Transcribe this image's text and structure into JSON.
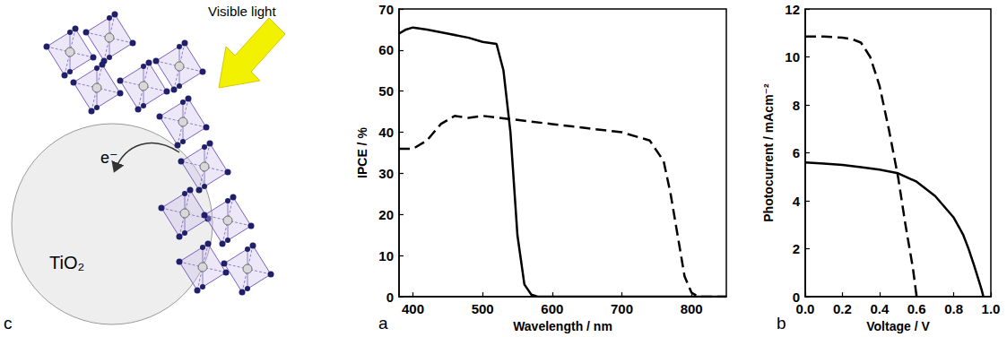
{
  "diagram": {
    "label": "c",
    "light": "Visible light",
    "electron": "e⁻",
    "substrate": "TiO₂"
  },
  "chart_data": [
    {
      "type": "line",
      "label": "a",
      "x_label": "Wavelength / nm",
      "y_label": "IPCE / %",
      "xlim": [
        380,
        850
      ],
      "xticks": [
        400,
        500,
        600,
        700,
        800
      ],
      "ylim": [
        0,
        70
      ],
      "yticks": [
        0,
        10,
        20,
        30,
        40,
        50,
        60,
        70
      ],
      "grid": false,
      "tick_labels": true,
      "series": [
        {
          "color": "#000000",
          "line_style": "solid",
          "x": [
            380,
            390,
            400,
            420,
            450,
            480,
            500,
            520,
            530,
            540,
            550,
            560,
            570,
            580,
            850
          ],
          "values": [
            64,
            65,
            65.5,
            65,
            64,
            63,
            62,
            61.5,
            55,
            40,
            15,
            3,
            0.5,
            0,
            0
          ]
        },
        {
          "color": "#000000",
          "line_style": "dashed",
          "x": [
            380,
            400,
            420,
            440,
            460,
            480,
            500,
            550,
            600,
            650,
            700,
            740,
            760,
            770,
            780,
            790,
            800,
            810,
            850
          ],
          "values": [
            36,
            36,
            38,
            42,
            44,
            43.5,
            44,
            43,
            42,
            41,
            40,
            38,
            33,
            25,
            15,
            5,
            1,
            0,
            0
          ]
        }
      ]
    },
    {
      "type": "line",
      "label": "b",
      "x_label": "Voltage / V",
      "y_label": "Photocurrent / mAcm⁻²",
      "xlim": [
        0,
        1
      ],
      "xticks": [
        {
          "value": 0,
          "label": "0.0"
        },
        {
          "value": 0.2,
          "label": "0.2"
        },
        {
          "value": 0.4,
          "label": "0.4"
        },
        {
          "value": 0.6,
          "label": "0.6"
        },
        {
          "value": 0.8,
          "label": "0.8"
        },
        {
          "value": 1,
          "label": "1.0"
        }
      ],
      "ylim": [
        0,
        12
      ],
      "yticks": [
        0,
        2,
        4,
        6,
        8,
        10,
        12
      ],
      "grid": false,
      "tick_labels": true,
      "series": [
        {
          "color": "#000000",
          "line_style": "solid",
          "x": [
            0,
            0.1,
            0.2,
            0.3,
            0.4,
            0.5,
            0.6,
            0.7,
            0.8,
            0.85,
            0.88,
            0.91,
            0.93,
            0.95,
            0.96
          ],
          "values": [
            5.6,
            5.55,
            5.5,
            5.4,
            5.3,
            5.15,
            4.8,
            4.2,
            3.3,
            2.6,
            2.0,
            1.3,
            0.8,
            0.3,
            0
          ]
        },
        {
          "color": "#000000",
          "line_style": "dashed",
          "x": [
            0,
            0.1,
            0.2,
            0.25,
            0.3,
            0.35,
            0.4,
            0.45,
            0.5,
            0.54,
            0.58,
            0.6
          ],
          "values": [
            10.85,
            10.85,
            10.8,
            10.75,
            10.6,
            10.0,
            8.8,
            7.0,
            5.0,
            3.0,
            1.2,
            0
          ]
        }
      ]
    }
  ]
}
